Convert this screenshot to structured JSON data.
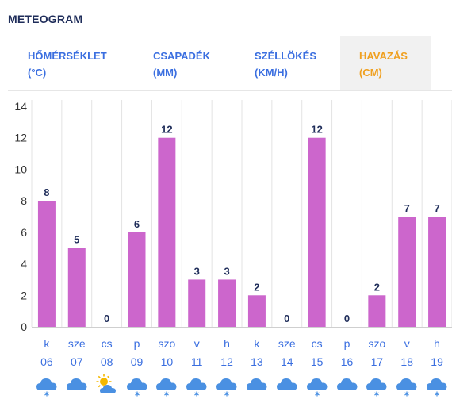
{
  "header": {
    "title": "METEOGRAM"
  },
  "tabs": [
    {
      "line1": "HŐMÉRSÉKLET",
      "line2": "(°C)",
      "active": false
    },
    {
      "line1": "CSAPADÉK",
      "line2": "(MM)",
      "active": false
    },
    {
      "line1": "SZÉLLÖKÉS",
      "line2": "(KM/H)",
      "active": false
    },
    {
      "line1": "HAVAZÁS",
      "line2": "(CM)",
      "active": true
    }
  ],
  "colors": {
    "bar": "#cc66cc",
    "accent": "#f0a020",
    "tab": "#3b6fe0",
    "title": "#1f2d5a"
  },
  "chart_data": {
    "type": "bar",
    "title": "",
    "xlabel": "",
    "ylabel": "",
    "ylim": [
      0,
      14
    ],
    "yticks": [
      0,
      2,
      4,
      6,
      8,
      10,
      12,
      14
    ],
    "grid": "vertical",
    "categories": [
      "k 06",
      "sze 07",
      "cs 08",
      "p 09",
      "szo 10",
      "v 11",
      "h 12",
      "k 13",
      "sze 14",
      "cs 15",
      "p 16",
      "szo 17",
      "v 18",
      "h 19"
    ],
    "day_names": [
      "k",
      "sze",
      "cs",
      "p",
      "szo",
      "v",
      "h",
      "k",
      "sze",
      "cs",
      "p",
      "szo",
      "v",
      "h"
    ],
    "dates": [
      "06",
      "07",
      "08",
      "09",
      "10",
      "11",
      "12",
      "13",
      "14",
      "15",
      "16",
      "17",
      "18",
      "19"
    ],
    "values": [
      8,
      5,
      0,
      6,
      12,
      3,
      3,
      2,
      0,
      12,
      0,
      2,
      7,
      7
    ]
  },
  "weather_icons": [
    "snow-cloud-icon",
    "cloud-icon",
    "sun-cloud-icon",
    "snow-cloud-icon",
    "snow-cloud-icon",
    "snow-cloud-icon",
    "snow-cloud-icon",
    "cloud-icon",
    "cloud-icon",
    "snow-cloud-icon",
    "cloud-icon",
    "snow-cloud-icon",
    "snow-cloud-icon",
    "snow-cloud-icon"
  ]
}
